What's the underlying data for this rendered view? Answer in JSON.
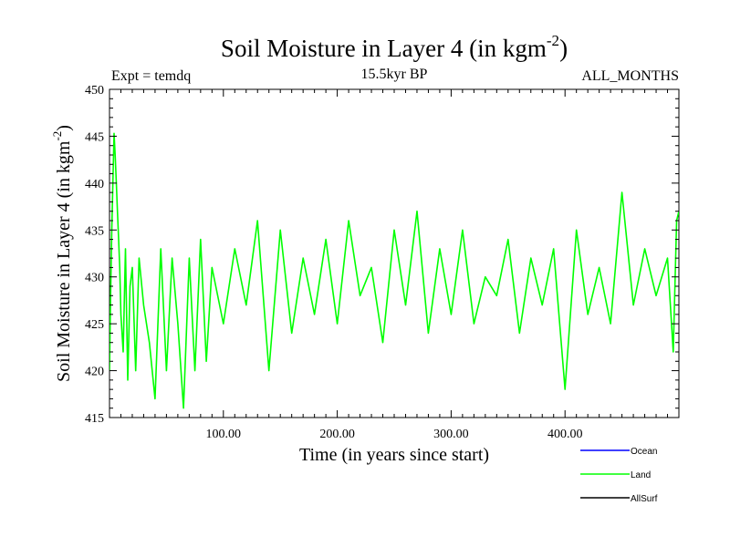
{
  "chart_data": {
    "type": "line",
    "title": "Soil Moisture in Layer 4 (in kgm",
    "title_sup": "-2",
    "title_end": ")",
    "subtitle_left": "Expt = temdq",
    "subtitle_center": "15.5kyr BP",
    "subtitle_right": "ALL_MONTHS",
    "xlabel": "Time (in years since start)",
    "ylabel": "Soil Moisture in Layer 4 (in kgm",
    "ylabel_sup": "-2",
    "ylabel_end": ")",
    "xlim": [
      0,
      500
    ],
    "ylim": [
      415,
      450
    ],
    "x_ticks": [
      {
        "value": 100,
        "label": "100.00"
      },
      {
        "value": 200,
        "label": "200.00"
      },
      {
        "value": 300,
        "label": "300.00"
      },
      {
        "value": 400,
        "label": "400.00"
      }
    ],
    "y_ticks": [
      {
        "value": 415,
        "label": "415"
      },
      {
        "value": 420,
        "label": "420"
      },
      {
        "value": 425,
        "label": "425"
      },
      {
        "value": 430,
        "label": "430"
      },
      {
        "value": 435,
        "label": "435"
      },
      {
        "value": 440,
        "label": "440"
      },
      {
        "value": 445,
        "label": "445"
      },
      {
        "value": 450,
        "label": "450"
      }
    ],
    "grid": false,
    "legend": [
      {
        "name": "Ocean",
        "color": "#0000ff"
      },
      {
        "name": "Land",
        "color": "#00ff00"
      },
      {
        "name": "AllSurf",
        "color": "#000000"
      }
    ],
    "series": [
      {
        "name": "Land",
        "color": "#00ff00",
        "x": [
          0,
          1,
          2,
          3,
          4,
          5,
          6,
          7,
          8,
          9,
          10,
          12,
          14,
          16,
          18,
          20,
          23,
          26,
          30,
          35,
          40,
          45,
          50,
          55,
          60,
          65,
          70,
          75,
          80,
          85,
          90,
          100,
          110,
          120,
          130,
          140,
          150,
          160,
          170,
          180,
          190,
          200,
          210,
          220,
          230,
          240,
          250,
          260,
          270,
          280,
          290,
          300,
          310,
          320,
          330,
          340,
          350,
          360,
          370,
          380,
          390,
          400,
          410,
          420,
          430,
          440,
          450,
          460,
          470,
          480,
          490,
          495,
          498,
          500
        ],
        "values": [
          420,
          428,
          435,
          440,
          445.3,
          443,
          440,
          437,
          434,
          431,
          426,
          422,
          433,
          419,
          429,
          431,
          420,
          432,
          427,
          423,
          417,
          433,
          420,
          432,
          425,
          416,
          432,
          420,
          434,
          421,
          431,
          425,
          433,
          427,
          436,
          420,
          435,
          424,
          432,
          426,
          434,
          425,
          436,
          428,
          431,
          423,
          435,
          427,
          437,
          424,
          433,
          426,
          435,
          425,
          430,
          428,
          434,
          424,
          432,
          427,
          433,
          418,
          435,
          426,
          431,
          425,
          439,
          427,
          433,
          428,
          432,
          422,
          436,
          437
        ]
      }
    ]
  }
}
